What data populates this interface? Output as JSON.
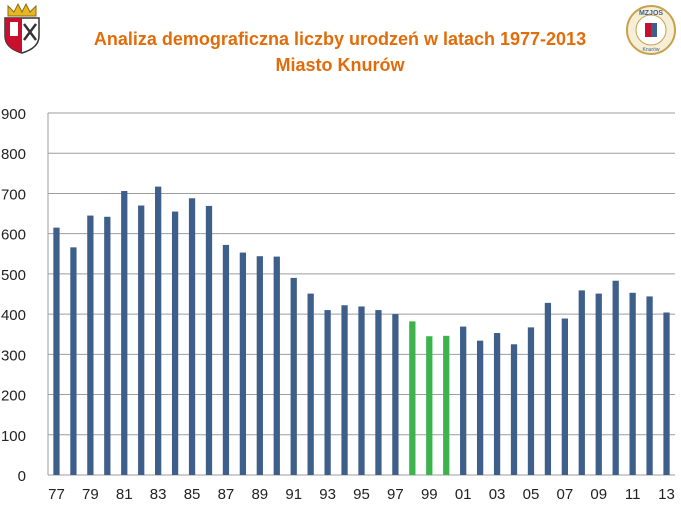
{
  "chart_data": {
    "type": "bar",
    "title": "Analiza demograficzna liczby urodzeń w latach 1977-2013",
    "subtitle": "Miasto Knurów",
    "xlabel": "",
    "ylabel": "",
    "ylim": [
      0,
      900
    ],
    "yticks": [
      "0",
      "100",
      "200",
      "300",
      "400",
      "500",
      "600",
      "700",
      "800",
      "900"
    ],
    "grid": true,
    "categories": [
      "77",
      "78",
      "79",
      "80",
      "81",
      "82",
      "83",
      "84",
      "85",
      "86",
      "87",
      "88",
      "89",
      "90",
      "91",
      "92",
      "93",
      "94",
      "95",
      "96",
      "97",
      "98",
      "99",
      "00",
      "01",
      "02",
      "03",
      "04",
      "05",
      "06",
      "07",
      "08",
      "09",
      "10",
      "11",
      "12",
      "13"
    ],
    "xtick_labels": [
      "77",
      "",
      "79",
      "",
      "81",
      "",
      "83",
      "",
      "85",
      "",
      "87",
      "",
      "89",
      "",
      "91",
      "",
      "93",
      "",
      "95",
      "",
      "97",
      "",
      "99",
      "",
      "01",
      "",
      "03",
      "",
      "05",
      "",
      "07",
      "",
      "09",
      "",
      "11",
      "",
      "13"
    ],
    "values": [
      615,
      566,
      645,
      642,
      706,
      670,
      717,
      655,
      688,
      669,
      572,
      553,
      544,
      543,
      490,
      451,
      410,
      422,
      419,
      410,
      400,
      382,
      345,
      346,
      369,
      334,
      353,
      325,
      367,
      428,
      389,
      459,
      451,
      483,
      453,
      444,
      404
    ],
    "highlight_indices": [
      21,
      22,
      23
    ],
    "colors": {
      "bar": "#3E5F8A",
      "highlight": "#3CB44B",
      "title": "#E36C0A",
      "grid": "#9E9E9E"
    }
  },
  "logos": {
    "left": "coat-of-arms",
    "right": {
      "text": "MZJOS",
      "subtext": "Knurów"
    }
  }
}
